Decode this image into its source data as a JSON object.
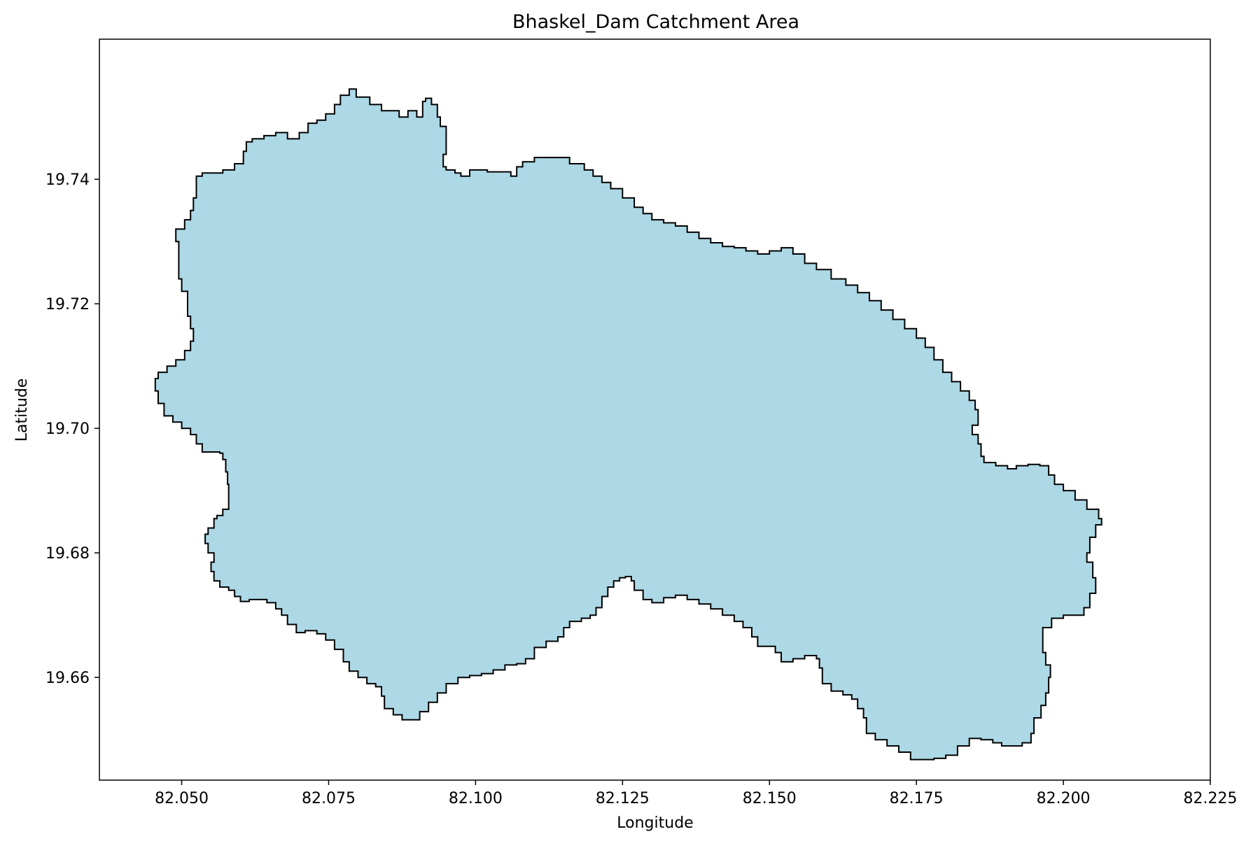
{
  "chart_data": {
    "type": "map",
    "title": "Bhaskel_Dam Catchment Area",
    "xlabel": "Longitude",
    "ylabel": "Latitude",
    "xlim": [
      82.036,
      82.225
    ],
    "ylim": [
      19.6435,
      19.7625
    ],
    "x_ticks": [
      82.05,
      82.075,
      82.1,
      82.125,
      82.15,
      82.175,
      82.2,
      82.225
    ],
    "x_tick_labels": [
      "82.050",
      "82.075",
      "82.100",
      "82.125",
      "82.150",
      "82.175",
      "82.200",
      "82.225"
    ],
    "y_ticks": [
      19.66,
      19.68,
      19.7,
      19.72,
      19.74
    ],
    "y_tick_labels": [
      "19.66",
      "19.68",
      "19.70",
      "19.72",
      "19.74"
    ],
    "grid": false,
    "fill_color": "#add8e6",
    "edge_color": "#000000",
    "boundary": [
      [
        82.0797,
        19.7545
      ],
      [
        82.082,
        19.7532
      ],
      [
        82.084,
        19.752
      ],
      [
        82.0855,
        19.751
      ],
      [
        82.087,
        19.751
      ],
      [
        82.0885,
        19.75
      ],
      [
        82.09,
        19.751
      ],
      [
        82.091,
        19.75
      ],
      [
        82.0915,
        19.7525
      ],
      [
        82.0925,
        19.753
      ],
      [
        82.0935,
        19.752
      ],
      [
        82.094,
        19.75
      ],
      [
        82.095,
        19.7485
      ],
      [
        82.095,
        19.746
      ],
      [
        82.0945,
        19.744
      ],
      [
        82.095,
        19.742
      ],
      [
        82.0965,
        19.7415
      ],
      [
        82.0975,
        19.741
      ],
      [
        82.099,
        19.7405
      ],
      [
        82.1,
        19.7415
      ],
      [
        82.102,
        19.7415
      ],
      [
        82.104,
        19.7412
      ],
      [
        82.106,
        19.7412
      ],
      [
        82.107,
        19.7405
      ],
      [
        82.108,
        19.742
      ],
      [
        82.11,
        19.7428
      ],
      [
        82.112,
        19.7435
      ],
      [
        82.114,
        19.7435
      ],
      [
        82.116,
        19.7435
      ],
      [
        82.1185,
        19.7425
      ],
      [
        82.12,
        19.7415
      ],
      [
        82.1215,
        19.7405
      ],
      [
        82.123,
        19.7395
      ],
      [
        82.125,
        19.7385
      ],
      [
        82.127,
        19.737
      ],
      [
        82.1285,
        19.7355
      ],
      [
        82.13,
        19.7345
      ],
      [
        82.132,
        19.7335
      ],
      [
        82.134,
        19.733
      ],
      [
        82.136,
        19.7325
      ],
      [
        82.138,
        19.7315
      ],
      [
        82.14,
        19.7305
      ],
      [
        82.142,
        19.7298
      ],
      [
        82.144,
        19.7292
      ],
      [
        82.146,
        19.729
      ],
      [
        82.148,
        19.7285
      ],
      [
        82.15,
        19.728
      ],
      [
        82.152,
        19.7285
      ],
      [
        82.154,
        19.729
      ],
      [
        82.156,
        19.728
      ],
      [
        82.158,
        19.7265
      ],
      [
        82.1605,
        19.7255
      ],
      [
        82.163,
        19.724
      ],
      [
        82.165,
        19.723
      ],
      [
        82.167,
        19.7218
      ],
      [
        82.169,
        19.7205
      ],
      [
        82.171,
        19.719
      ],
      [
        82.173,
        19.7175
      ],
      [
        82.175,
        19.716
      ],
      [
        82.1765,
        19.7145
      ],
      [
        82.178,
        19.713
      ],
      [
        82.1795,
        19.711
      ],
      [
        82.181,
        19.709
      ],
      [
        82.1825,
        19.7075
      ],
      [
        82.184,
        19.706
      ],
      [
        82.185,
        19.7045
      ],
      [
        82.1855,
        19.703
      ],
      [
        82.1845,
        19.7005
      ],
      [
        82.1855,
        19.699
      ],
      [
        82.186,
        19.6975
      ],
      [
        82.1865,
        19.6955
      ],
      [
        82.1885,
        19.6945
      ],
      [
        82.1905,
        19.694
      ],
      [
        82.192,
        19.6935
      ],
      [
        82.194,
        19.694
      ],
      [
        82.196,
        19.6942
      ],
      [
        82.1975,
        19.694
      ],
      [
        82.1985,
        19.6925
      ],
      [
        82.2,
        19.691
      ],
      [
        82.202,
        19.69
      ],
      [
        82.204,
        19.6885
      ],
      [
        82.206,
        19.687
      ],
      [
        82.2065,
        19.6855
      ],
      [
        82.2055,
        19.6845
      ],
      [
        82.2045,
        19.6825
      ],
      [
        82.204,
        19.68
      ],
      [
        82.205,
        19.6785
      ],
      [
        82.2055,
        19.676
      ],
      [
        82.2045,
        19.6735
      ],
      [
        82.2035,
        19.6712
      ],
      [
        82.2025,
        19.67
      ],
      [
        82.2,
        19.67
      ],
      [
        82.198,
        19.6695
      ],
      [
        82.1965,
        19.668
      ],
      [
        82.1965,
        19.666
      ],
      [
        82.197,
        19.664
      ],
      [
        82.1978,
        19.662
      ],
      [
        82.1975,
        19.66
      ],
      [
        82.197,
        19.6575
      ],
      [
        82.1962,
        19.6555
      ],
      [
        82.195,
        19.6535
      ],
      [
        82.1945,
        19.651
      ],
      [
        82.193,
        19.6495
      ],
      [
        82.191,
        19.649
      ],
      [
        82.1895,
        19.649
      ],
      [
        82.188,
        19.6495
      ],
      [
        82.186,
        19.65
      ],
      [
        82.184,
        19.6502
      ],
      [
        82.182,
        19.649
      ],
      [
        82.18,
        19.6475
      ],
      [
        82.178,
        19.647
      ],
      [
        82.176,
        19.6468
      ],
      [
        82.174,
        19.6468
      ],
      [
        82.172,
        19.648
      ],
      [
        82.17,
        19.649
      ],
      [
        82.168,
        19.65
      ],
      [
        82.1665,
        19.651
      ],
      [
        82.166,
        19.6535
      ],
      [
        82.165,
        19.655
      ],
      [
        82.164,
        19.6565
      ],
      [
        82.1625,
        19.6572
      ],
      [
        82.1605,
        19.6578
      ],
      [
        82.159,
        19.659
      ],
      [
        82.1585,
        19.6615
      ],
      [
        82.158,
        19.663
      ],
      [
        82.156,
        19.6635
      ],
      [
        82.154,
        19.663
      ],
      [
        82.152,
        19.6625
      ],
      [
        82.151,
        19.664
      ],
      [
        82.15,
        19.665
      ],
      [
        82.148,
        19.665
      ],
      [
        82.147,
        19.6665
      ],
      [
        82.1455,
        19.668
      ],
      [
        82.144,
        19.669
      ],
      [
        82.142,
        19.67
      ],
      [
        82.14,
        19.671
      ],
      [
        82.138,
        19.6718
      ],
      [
        82.136,
        19.6725
      ],
      [
        82.134,
        19.6732
      ],
      [
        82.132,
        19.6728
      ],
      [
        82.13,
        19.672
      ],
      [
        82.1285,
        19.6725
      ],
      [
        82.127,
        19.674
      ],
      [
        82.1265,
        19.6755
      ],
      [
        82.1255,
        19.6762
      ],
      [
        82.1245,
        19.676
      ],
      [
        82.1235,
        19.6755
      ],
      [
        82.1225,
        19.6745
      ],
      [
        82.1215,
        19.673
      ],
      [
        82.1205,
        19.6712
      ],
      [
        82.1195,
        19.67
      ],
      [
        82.118,
        19.6695
      ],
      [
        82.116,
        19.669
      ],
      [
        82.115,
        19.668
      ],
      [
        82.114,
        19.6665
      ],
      [
        82.112,
        19.6658
      ],
      [
        82.11,
        19.6648
      ],
      [
        82.1085,
        19.663
      ],
      [
        82.107,
        19.6622
      ],
      [
        82.105,
        19.662
      ],
      [
        82.103,
        19.6612
      ],
      [
        82.101,
        19.6606
      ],
      [
        82.099,
        19.6603
      ],
      [
        82.097,
        19.66
      ],
      [
        82.095,
        19.659
      ],
      [
        82.0935,
        19.6575
      ],
      [
        82.092,
        19.656
      ],
      [
        82.0905,
        19.6545
      ],
      [
        82.089,
        19.6532
      ],
      [
        82.0875,
        19.6532
      ],
      [
        82.086,
        19.654
      ],
      [
        82.0845,
        19.655
      ],
      [
        82.084,
        19.657
      ],
      [
        82.083,
        19.6585
      ],
      [
        82.0815,
        19.659
      ],
      [
        82.08,
        19.66
      ],
      [
        82.0785,
        19.661
      ],
      [
        82.0775,
        19.6625
      ],
      [
        82.076,
        19.6645
      ],
      [
        82.0745,
        19.666
      ],
      [
        82.073,
        19.667
      ],
      [
        82.071,
        19.6675
      ],
      [
        82.0695,
        19.6672
      ],
      [
        82.068,
        19.6685
      ],
      [
        82.067,
        19.67
      ],
      [
        82.066,
        19.671
      ],
      [
        82.0645,
        19.672
      ],
      [
        82.063,
        19.6725
      ],
      [
        82.0615,
        19.6725
      ],
      [
        82.06,
        19.6722
      ],
      [
        82.059,
        19.673
      ],
      [
        82.058,
        19.674
      ],
      [
        82.0565,
        19.6745
      ],
      [
        82.0555,
        19.6755
      ],
      [
        82.055,
        19.677
      ],
      [
        82.0555,
        19.6785
      ],
      [
        82.0545,
        19.68
      ],
      [
        82.054,
        19.6815
      ],
      [
        82.0545,
        19.683
      ],
      [
        82.0555,
        19.684
      ],
      [
        82.056,
        19.6855
      ],
      [
        82.057,
        19.686
      ],
      [
        82.058,
        19.687
      ],
      [
        82.058,
        19.689
      ],
      [
        82.0578,
        19.691
      ],
      [
        82.0575,
        19.693
      ],
      [
        82.057,
        19.695
      ],
      [
        82.0565,
        19.696
      ],
      [
        82.055,
        19.6962
      ],
      [
        82.0535,
        19.6962
      ],
      [
        82.0525,
        19.6975
      ],
      [
        82.0515,
        19.699
      ],
      [
        82.05,
        19.7
      ],
      [
        82.0485,
        19.701
      ],
      [
        82.047,
        19.702
      ],
      [
        82.046,
        19.704
      ],
      [
        82.0455,
        19.706
      ],
      [
        82.046,
        19.708
      ],
      [
        82.0475,
        19.709
      ],
      [
        82.049,
        19.71
      ],
      [
        82.0505,
        19.711
      ],
      [
        82.0515,
        19.7125
      ],
      [
        82.052,
        19.714
      ],
      [
        82.0515,
        19.716
      ],
      [
        82.051,
        19.718
      ],
      [
        82.051,
        19.72
      ],
      [
        82.05,
        19.722
      ],
      [
        82.0495,
        19.724
      ],
      [
        82.0495,
        19.726
      ],
      [
        82.0495,
        19.728
      ],
      [
        82.049,
        19.73
      ],
      [
        82.049,
        19.7315
      ],
      [
        82.0505,
        19.732
      ],
      [
        82.0515,
        19.7335
      ],
      [
        82.052,
        19.735
      ],
      [
        82.0525,
        19.737
      ],
      [
        82.0525,
        19.739
      ],
      [
        82.0535,
        19.7405
      ],
      [
        82.055,
        19.741
      ],
      [
        82.057,
        19.741
      ],
      [
        82.059,
        19.7415
      ],
      [
        82.0605,
        19.7425
      ],
      [
        82.061,
        19.7445
      ],
      [
        82.062,
        19.746
      ],
      [
        82.064,
        19.7465
      ],
      [
        82.066,
        19.747
      ],
      [
        82.068,
        19.7475
      ],
      [
        82.07,
        19.7465
      ],
      [
        82.0715,
        19.7475
      ],
      [
        82.073,
        19.749
      ],
      [
        82.0745,
        19.7495
      ],
      [
        82.076,
        19.7505
      ],
      [
        82.077,
        19.752
      ],
      [
        82.0785,
        19.7535
      ],
      [
        82.0797,
        19.7545
      ]
    ]
  }
}
